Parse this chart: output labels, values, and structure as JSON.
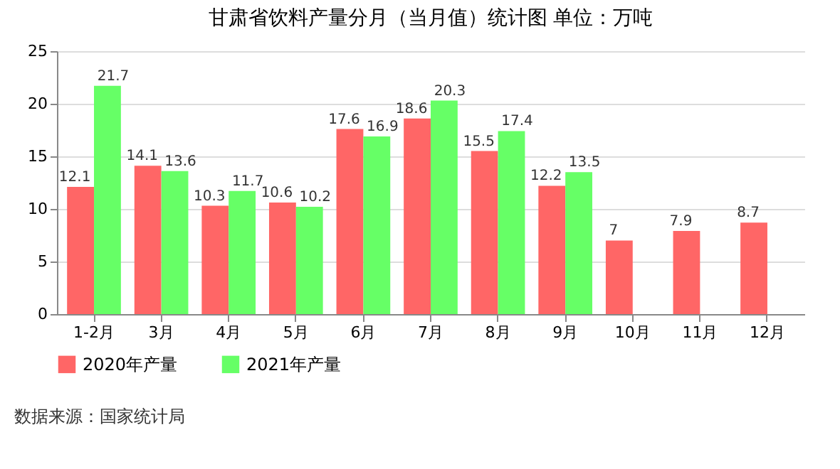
{
  "chart_data": {
    "type": "bar",
    "title": "甘肃省饮料产量分月（当月值）统计图 单位：万吨",
    "categories": [
      "1-2月",
      "3月",
      "4月",
      "5月",
      "6月",
      "7月",
      "8月",
      "9月",
      "10月",
      "11月",
      "12月"
    ],
    "series": [
      {
        "name": "2020年产量",
        "color": "#ff6666",
        "values": [
          12.1,
          14.1,
          10.3,
          10.6,
          17.6,
          18.6,
          15.5,
          12.2,
          7,
          7.9,
          8.7
        ]
      },
      {
        "name": "2021年产量",
        "color": "#66ff66",
        "values": [
          21.7,
          13.6,
          11.7,
          10.2,
          16.9,
          20.3,
          17.4,
          13.5,
          null,
          null,
          null
        ]
      }
    ],
    "ylim": [
      0,
      25
    ],
    "yticks": [
      0,
      5,
      10,
      15,
      20,
      25
    ],
    "grid": "y",
    "legend": "bottom",
    "data_labels": true,
    "annotations": [
      "数据来源：国家统计局"
    ]
  }
}
